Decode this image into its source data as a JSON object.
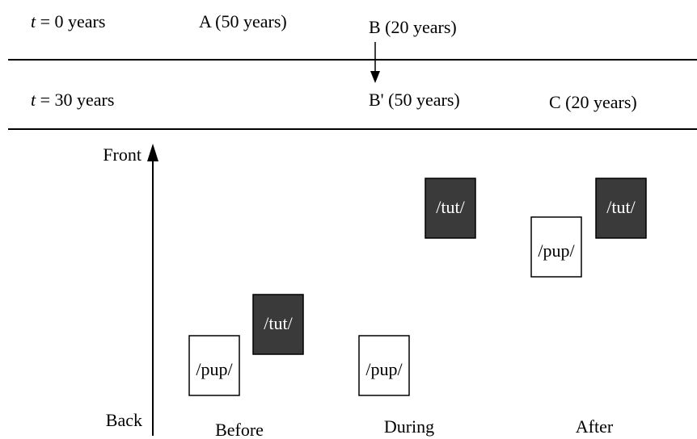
{
  "rows": [
    {
      "label": {
        "var": "t",
        "rest": " = 0 years"
      },
      "items": [
        "A (50 years)",
        "B (20 years)"
      ]
    },
    {
      "label": {
        "var": "t",
        "rest": " = 30 years"
      },
      "items": [
        "B' (50 years)",
        "C (20 years)"
      ]
    }
  ],
  "axis": {
    "top": "Front",
    "bottom": "Back"
  },
  "stages": [
    "Before",
    "During",
    "After"
  ],
  "boxes": {
    "pup": "/pup/",
    "tut": "/tut/"
  }
}
